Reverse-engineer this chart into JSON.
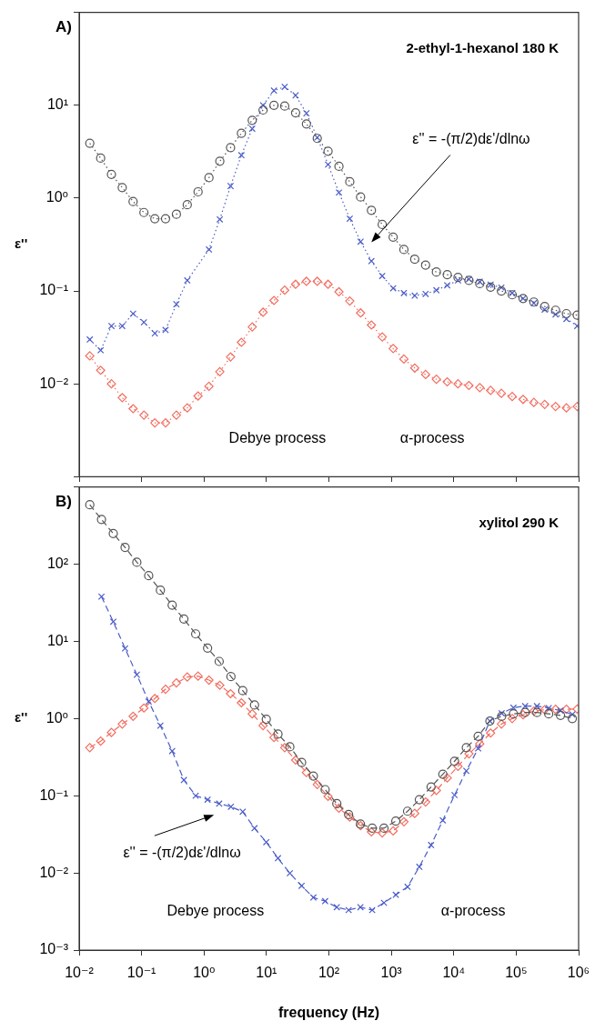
{
  "chart_data": [
    {
      "type": "line",
      "title": "A)",
      "subtitle": "2-ethyl-1-hexanol 180 K",
      "ylabel": "ε''",
      "log": "xy",
      "tick_labels": "y",
      "line_style": "dotted",
      "x": [
        0.0148,
        0.0221,
        0.0329,
        0.049,
        0.0731,
        0.109,
        0.163,
        0.242,
        0.361,
        0.539,
        0.803,
        1.2,
        1.79,
        2.66,
        3.97,
        5.92,
        8.83,
        13.2,
        19.6,
        29.3,
        43.7,
        65.1,
        97,
        145,
        216,
        322,
        480,
        715,
        1070,
        1590,
        2370,
        3540,
        5270,
        7860,
        11700,
        17500,
        26100,
        38900,
        57900,
        86400,
        129000,
        192000,
        286000,
        427000,
        637000,
        950000
      ],
      "xlim": [
        0.01,
        1000000
      ],
      "xticks": [
        {
          "value": 0.01,
          "label": null
        },
        {
          "value": 0.1,
          "label": null
        },
        {
          "value": 1,
          "label": null
        },
        {
          "value": 10,
          "label": null
        },
        {
          "value": 100,
          "label": null
        },
        {
          "value": 1000,
          "label": null
        },
        {
          "value": 10000,
          "label": null
        },
        {
          "value": 100000,
          "label": null
        },
        {
          "value": 1000000,
          "label": null
        }
      ],
      "ylim": [
        0.001,
        100
      ],
      "yticks": [
        {
          "value": 0.001,
          "label": null
        },
        {
          "value": 0.01,
          "label": "10⁻²"
        },
        {
          "value": 0.1,
          "label": "10⁻¹"
        },
        {
          "value": 1,
          "label": "10⁰"
        },
        {
          "value": 10,
          "label": "10¹"
        },
        {
          "value": 100,
          "label": null
        }
      ],
      "series": [
        {
          "color": "#555555",
          "marker": "circle",
          "values": [
            3.9,
            2.7,
            1.8,
            1.3,
            0.92,
            0.7,
            0.6,
            0.6,
            0.67,
            0.85,
            1.17,
            1.66,
            2.5,
            3.5,
            5,
            6.9,
            8.9,
            10,
            9.8,
            8.3,
            6.3,
            4.4,
            3.2,
            2.2,
            1.5,
            1.03,
            0.74,
            0.52,
            0.38,
            0.28,
            0.22,
            0.19,
            0.16,
            0.15,
            0.14,
            0.13,
            0.12,
            0.11,
            0.1,
            0.091,
            0.083,
            0.076,
            0.068,
            0.062,
            0.057,
            0.055
          ]
        },
        {
          "color": "#4a5cc8",
          "marker": "cross",
          "values": [
            0.03,
            0.023,
            0.042,
            0.042,
            0.057,
            0.046,
            0.035,
            0.038,
            0.072,
            0.13,
            null,
            0.28,
            0.59,
            1.35,
            2.9,
            5.6,
            10,
            14.4,
            15.8,
            12.8,
            8.2,
            4.5,
            2.3,
            1.15,
            0.6,
            0.34,
            0.21,
            0.145,
            0.107,
            0.095,
            0.089,
            0.093,
            0.102,
            0.115,
            0.13,
            0.134,
            0.126,
            0.117,
            0.109,
            0.095,
            0.083,
            0.074,
            0.063,
            0.056,
            0.05,
            0.042
          ]
        },
        {
          "color": "#f26d5f",
          "marker": "diamond",
          "values": [
            0.02,
            0.014,
            0.01,
            0.0071,
            0.0054,
            0.0046,
            0.0038,
            0.0038,
            0.0046,
            0.0055,
            0.0074,
            0.0094,
            0.0135,
            0.0195,
            0.028,
            0.041,
            0.059,
            0.079,
            0.102,
            0.118,
            0.127,
            0.127,
            0.118,
            0.098,
            0.078,
            0.058,
            0.043,
            0.032,
            0.024,
            0.0185,
            0.0148,
            0.0126,
            0.0112,
            0.0105,
            0.01,
            0.0096,
            0.0091,
            0.0085,
            0.0079,
            0.0073,
            0.0068,
            0.0063,
            0.006,
            0.0057,
            0.0055,
            0.0057
          ]
        }
      ],
      "annotations": [
        "ε'' = -(π/2)dε'/dlnω",
        "Debye process",
        "α-process"
      ]
    },
    {
      "type": "line",
      "title": "B)",
      "subtitle": "xylitol 290 K",
      "xlabel": "frequency (Hz)",
      "ylabel": "ε''",
      "log": "xy",
      "line_style": "dashed",
      "x": [
        0.0148,
        0.0228,
        0.0352,
        0.0544,
        0.0839,
        0.13,
        0.2,
        0.309,
        0.476,
        0.735,
        1.14,
        1.75,
        2.7,
        4.17,
        6.44,
        9.94,
        15.3,
        23.7,
        36.6,
        56.4,
        87.1,
        134,
        207,
        320,
        494,
        763,
        1180,
        1820,
        2810,
        4330,
        6680,
        10300,
        15900,
        24600,
        37900,
        58500,
        90400,
        139000,
        215000,
        332000,
        513000,
        792000
      ],
      "xlim": [
        0.01,
        1000000
      ],
      "xticks": [
        {
          "value": 0.01,
          "label": "10⁻²"
        },
        {
          "value": 0.1,
          "label": "10⁻¹"
        },
        {
          "value": 1,
          "label": "10⁰"
        },
        {
          "value": 10,
          "label": "10¹"
        },
        {
          "value": 100,
          "label": "10²"
        },
        {
          "value": 1000,
          "label": "10³"
        },
        {
          "value": 10000,
          "label": "10⁴"
        },
        {
          "value": 100000,
          "label": "10⁵"
        },
        {
          "value": 1000000,
          "label": "10⁶"
        }
      ],
      "ylim": [
        0.001,
        1000
      ],
      "yticks": [
        {
          "value": 0.001,
          "label": "10⁻³"
        },
        {
          "value": 0.01,
          "label": "10⁻²"
        },
        {
          "value": 0.1,
          "label": "10⁻¹"
        },
        {
          "value": 1,
          "label": "10⁰"
        },
        {
          "value": 10,
          "label": "10¹"
        },
        {
          "value": 100,
          "label": "10²"
        },
        {
          "value": 1000,
          "label": null
        }
      ],
      "series": [
        {
          "color": "#555555",
          "marker": "circle",
          "values": [
            590,
            380,
            250,
            165,
            106,
            71,
            46,
            29.5,
            19.5,
            12.5,
            8.2,
            5.5,
            3.5,
            2.3,
            1.5,
            0.98,
            0.63,
            0.43,
            0.27,
            0.18,
            0.12,
            0.079,
            0.057,
            0.043,
            0.038,
            0.038,
            0.047,
            0.063,
            0.089,
            0.13,
            0.19,
            0.28,
            0.42,
            0.59,
            0.93,
            1.07,
            1.15,
            1.2,
            1.2,
            1.15,
            1.1,
            1.0
          ]
        },
        {
          "color": "#4a5cc8",
          "marker": "cross",
          "values": [
            null,
            38,
            18,
            8.1,
            3.7,
            1.66,
            0.81,
            0.38,
            0.16,
            0.1,
            0.089,
            0.079,
            0.072,
            0.062,
            0.038,
            0.025,
            0.0155,
            0.0099,
            0.0068,
            0.0048,
            0.0043,
            0.0036,
            0.0033,
            0.0036,
            0.0033,
            0.0041,
            0.0052,
            0.0066,
            0.012,
            0.023,
            0.048,
            0.102,
            0.21,
            0.41,
            0.93,
            1.17,
            1.38,
            1.45,
            1.45,
            1.37,
            1.27,
            1.13
          ]
        },
        {
          "color": "#f26d5f",
          "marker": "diamond",
          "x": [
            0.0148,
            0.0221,
            0.0329,
            0.049,
            0.0731,
            0.109,
            0.163,
            0.242,
            0.361,
            0.539,
            0.803,
            1.2,
            1.79,
            2.66,
            3.97,
            5.92,
            8.83,
            13.2,
            19.6,
            29.3,
            43.7,
            65.1,
            97,
            145,
            216,
            322,
            480,
            715,
            1070,
            1590,
            2370,
            3540,
            5270,
            7860,
            11700,
            17500,
            26100,
            38900,
            57900,
            86400,
            129000,
            192000,
            286000,
            427000,
            637000,
            950000
          ],
          "values": [
            0.42,
            0.51,
            0.66,
            0.85,
            1.07,
            1.37,
            1.82,
            2.4,
            2.9,
            3.45,
            3.55,
            3.15,
            2.7,
            2.1,
            1.6,
            1.15,
            0.81,
            0.57,
            0.42,
            0.29,
            0.2,
            0.14,
            0.098,
            0.069,
            0.053,
            0.041,
            0.034,
            0.033,
            0.035,
            0.046,
            0.059,
            0.083,
            0.117,
            0.17,
            0.24,
            0.35,
            0.47,
            0.65,
            0.85,
            1.0,
            1.12,
            1.25,
            1.3,
            1.32,
            1.32,
            1.33
          ]
        }
      ],
      "annotations": [
        "ε'' = -(π/2)dε'/dlnω",
        "Debye process",
        "α-process"
      ]
    }
  ]
}
